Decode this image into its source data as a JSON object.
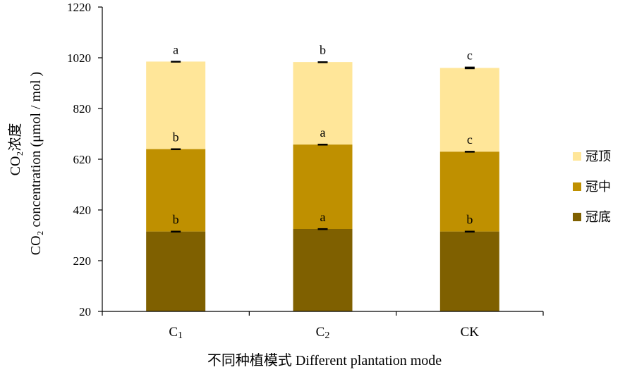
{
  "chart_data": {
    "type": "bar",
    "stacked": true,
    "categories": [
      "C1",
      "C2",
      "CK"
    ],
    "series": [
      {
        "name": "冠底",
        "values": [
          315,
          325,
          315
        ],
        "errors": [
          3,
          3,
          3
        ],
        "letters": [
          "b",
          "a",
          "b"
        ],
        "color": "#7f6000"
      },
      {
        "name": "冠中",
        "values": [
          325,
          333,
          315
        ],
        "errors": [
          3,
          3,
          3
        ],
        "letters": [
          "b",
          "a",
          "c"
        ],
        "color": "#bf9000"
      },
      {
        "name": "冠顶",
        "values": [
          345,
          325,
          330
        ],
        "errors": [
          3,
          3,
          5
        ],
        "letters": [
          "a",
          "b",
          "c"
        ],
        "color": "#ffe699"
      }
    ],
    "ylim": [
      20,
      1220
    ],
    "yticks": [
      20,
      220,
      420,
      620,
      820,
      1020,
      1220
    ],
    "xlabel": "不同种植模式 Different plantation mode",
    "ylabel_line1": "CO₂浓度",
    "ylabel_line2": "CO₂ concentration (μmol / mol )",
    "legend_position": "right",
    "grid": false
  }
}
